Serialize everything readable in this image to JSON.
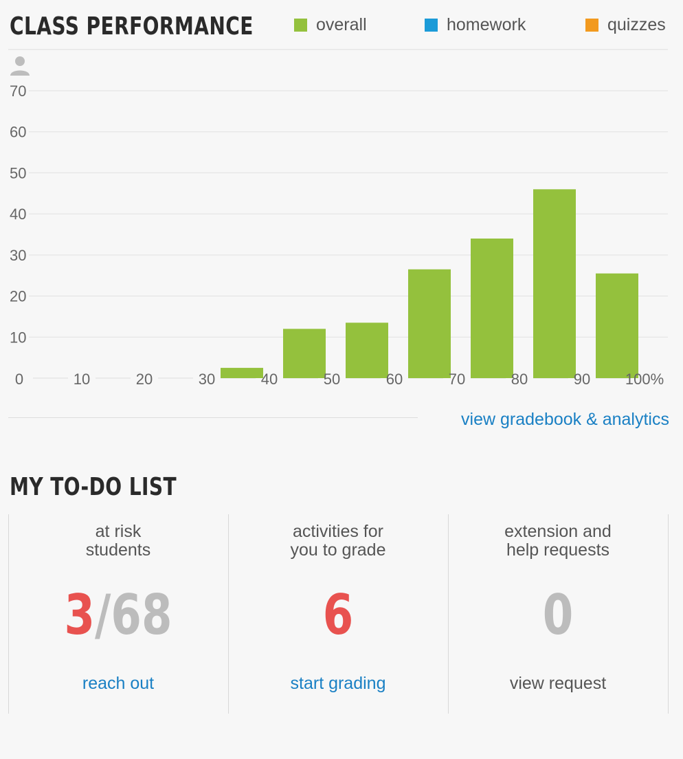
{
  "class_performance": {
    "title": "CLASS PERFORMANCE",
    "legend": [
      {
        "label": "overall",
        "color": "#94c13d"
      },
      {
        "label": "homework",
        "color": "#1b9bd8"
      },
      {
        "label": "quizzes",
        "color": "#f29a1f"
      }
    ],
    "footer_link": "view gradebook & analytics",
    "icon": "person-icon"
  },
  "chart_data": {
    "type": "bar",
    "series": [
      {
        "name": "overall",
        "color": "#94c13d"
      }
    ],
    "x_ticks": [
      "0",
      "10",
      "20",
      "30",
      "40",
      "50",
      "60",
      "70",
      "80",
      "90",
      "100%"
    ],
    "y_ticks": [
      "70",
      "60",
      "50",
      "40",
      "30",
      "20",
      "10"
    ],
    "bins": [
      {
        "from": 30,
        "to": 40,
        "value": 2.5
      },
      {
        "from": 40,
        "to": 50,
        "value": 12
      },
      {
        "from": 50,
        "to": 60,
        "value": 13.5
      },
      {
        "from": 60,
        "to": 70,
        "value": 26.5
      },
      {
        "from": 70,
        "to": 80,
        "value": 34
      },
      {
        "from": 80,
        "to": 90,
        "value": 46
      },
      {
        "from": 90,
        "to": 100,
        "value": 25.5
      }
    ],
    "xlim": [
      0,
      100
    ],
    "ylim": [
      0,
      70
    ],
    "grid": true
  },
  "todo": {
    "title": "MY TO-DO LIST",
    "items": [
      {
        "label_line1": "at risk",
        "label_line2": "students",
        "count": "3",
        "count_total": "/68",
        "link": "reach out"
      },
      {
        "label_line1": "activities for",
        "label_line2": "you to grade",
        "count": "6",
        "link": "start grading"
      },
      {
        "label_line1": "extension and",
        "label_line2": "help requests",
        "count": "0",
        "link": "view request"
      }
    ]
  }
}
